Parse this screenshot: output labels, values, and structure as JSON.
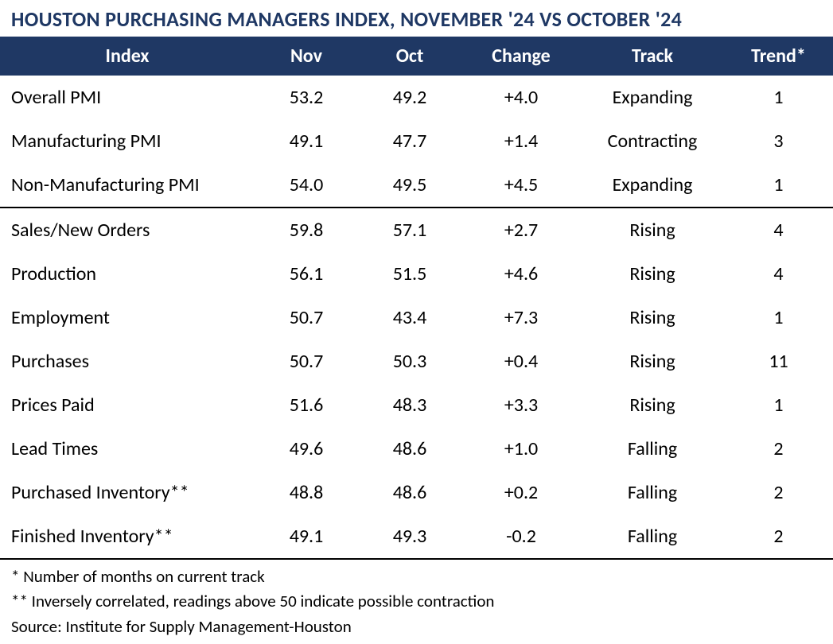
{
  "title": "HOUSTON PURCHASING MANAGERS INDEX, NOVEMBER '24 VS OCTOBER '24",
  "columns": {
    "index": "Index",
    "nov": "Nov",
    "oct": "Oct",
    "change": "Change",
    "track": "Track",
    "trend": "Trend*"
  },
  "section1": [
    {
      "index": "Overall PMI",
      "nov": "53.2",
      "oct": "49.2",
      "change": "+4.0",
      "track": "Expanding",
      "trend": "1"
    },
    {
      "index": "Manufacturing PMI",
      "nov": "49.1",
      "oct": "47.7",
      "change": "+1.4",
      "track": "Contracting",
      "trend": "3"
    },
    {
      "index": "Non-Manufacturing PMI",
      "nov": "54.0",
      "oct": "49.5",
      "change": "+4.5",
      "track": "Expanding",
      "trend": "1"
    }
  ],
  "section2": [
    {
      "index": "Sales/New Orders",
      "nov": "59.8",
      "oct": "57.1",
      "change": "+2.7",
      "track": "Rising",
      "trend": "4"
    },
    {
      "index": "Production",
      "nov": "56.1",
      "oct": "51.5",
      "change": "+4.6",
      "track": "Rising",
      "trend": "4"
    },
    {
      "index": "Employment",
      "nov": "50.7",
      "oct": "43.4",
      "change": "+7.3",
      "track": "Rising",
      "trend": "1"
    },
    {
      "index": "Purchases",
      "nov": "50.7",
      "oct": "50.3",
      "change": "+0.4",
      "track": "Rising",
      "trend": "11"
    },
    {
      "index": "Prices Paid",
      "nov": "51.6",
      "oct": "48.3",
      "change": "+3.3",
      "track": "Rising",
      "trend": "1"
    },
    {
      "index": "Lead Times",
      "nov": "49.6",
      "oct": "48.6",
      "change": "+1.0",
      "track": "Falling",
      "trend": "2"
    },
    {
      "index": "Purchased Inventory**",
      "nov": "48.8",
      "oct": "48.6",
      "change": "+0.2",
      "track": "Falling",
      "trend": "2"
    },
    {
      "index": "Finished Inventory**",
      "nov": "49.1",
      "oct": "49.3",
      "change": "-0.2",
      "track": "Falling",
      "trend": "2"
    }
  ],
  "footnotes": [
    "* Number of months on current track",
    "** Inversely correlated, readings above 50 indicate possible contraction",
    "Source: Institute for Supply Management-Houston"
  ],
  "styling": {
    "header_bg": "#1f3864",
    "header_text": "#ffffff",
    "title_color": "#1f3864",
    "body_text": "#000000",
    "background": "#ffffff",
    "title_fontsize": 26,
    "header_fontsize": 24,
    "data_fontsize": 24,
    "footnote_fontsize": 21,
    "column_widths": {
      "index": 320,
      "nov": 130,
      "oct": 130,
      "change": 150,
      "track": 180,
      "trend": 137
    },
    "divider_color": "#000000",
    "divider_width": 2
  }
}
